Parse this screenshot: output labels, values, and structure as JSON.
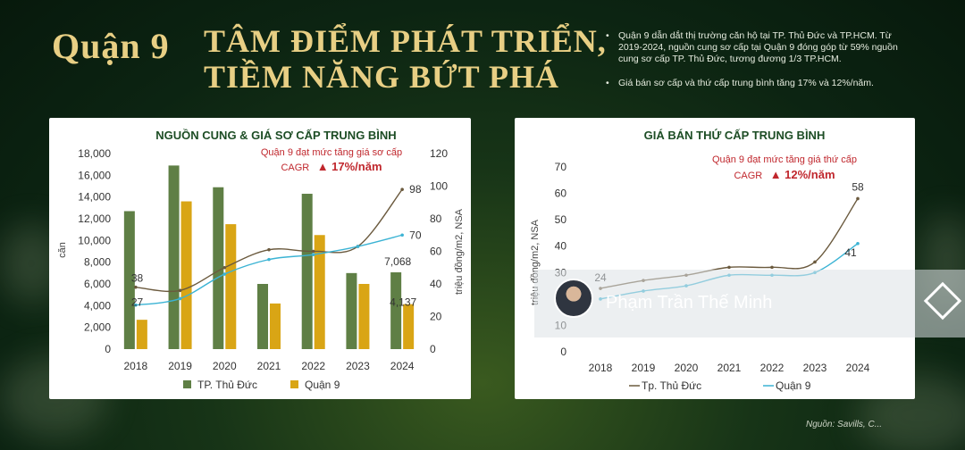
{
  "header": {
    "district": "Quận 9",
    "headline_line1": "TÂM ĐIỂM PHÁT TRIỂN,",
    "headline_line2": "TIỀM NĂNG BỨT PHÁ",
    "notes": [
      "Quận 9 dẫn dắt thị trường căn hộ tại TP. Thủ Đức và TP.HCM. Từ 2019-2024, nguồn cung sơ cấp tại Quận 9 đóng góp từ 59% nguồn cung sơ cấp TP. Thủ Đức, tương đương 1/3 TP.HCM.",
      "Giá bán sơ cấp và thứ cấp trung bình tăng 17% và 12%/năm."
    ]
  },
  "source": "Nguồn: Savills, C...",
  "watermark": {
    "name": "Phạm Trần Thế Minh"
  },
  "colors": {
    "green_bar": "#5f7f45",
    "gold_bar": "#d9a515",
    "brown_line": "#6b5a3e",
    "teal_line": "#3bb3d4",
    "accent_red": "#c0272d",
    "title_green": "#1d4d25"
  },
  "chart_data": [
    {
      "type": "bar",
      "title": "NGUỒN CUNG & GIÁ SƠ CẤP TRUNG BÌNH",
      "annotation_line1": "Quận 9 đạt mức tăng giá sơ cấp",
      "annotation_cagr": "CAGR",
      "annotation_value": "▲ 17%/năm",
      "categories": [
        "2018",
        "2019",
        "2020",
        "2021",
        "2022",
        "2023",
        "2024"
      ],
      "ylabel": "căn",
      "y2label": "triệu đồng/m2, NSA",
      "ylim": [
        0,
        18000
      ],
      "y_ticks": [
        "0",
        "2,000",
        "4,000",
        "6,000",
        "8,000",
        "10,000",
        "12,000",
        "14,000",
        "16,000",
        "18,000"
      ],
      "y2lim": [
        0,
        120
      ],
      "y2_ticks": [
        "0",
        "20",
        "40",
        "60",
        "80",
        "100",
        "120"
      ],
      "series": [
        {
          "name": "TP. Thủ Đức",
          "kind": "bar",
          "values": [
            12700,
            16900,
            14900,
            6000,
            14300,
            7000,
            7068
          ]
        },
        {
          "name": "Quận 9",
          "kind": "bar",
          "values": [
            2700,
            13600,
            11500,
            4200,
            10500,
            6000,
            4137
          ]
        },
        {
          "name": "TP. Thủ Đức price",
          "kind": "line",
          "axis": "right",
          "values": [
            38,
            36,
            50,
            61,
            60,
            63,
            98
          ]
        },
        {
          "name": "Quận 9 price",
          "kind": "line",
          "axis": "right",
          "values": [
            27,
            31,
            46,
            55,
            58,
            63,
            70
          ]
        }
      ],
      "data_labels": [
        "38",
        "27",
        "98",
        "70",
        "7,068",
        "4,137"
      ],
      "legend": [
        "TP. Thủ Đức",
        "Quận 9"
      ]
    },
    {
      "type": "line",
      "title": "GIÁ BÁN THỨ CẤP TRUNG BÌNH",
      "annotation_line1": "Quận 9 đạt mức tăng giá thứ cấp",
      "annotation_cagr": "CAGR",
      "annotation_value": "▲ 12%/năm",
      "categories": [
        "2018",
        "2019",
        "2020",
        "2021",
        "2022",
        "2023",
        "2024"
      ],
      "ylabel": "triệu đồng/m2, NSA",
      "ylim": [
        0,
        70
      ],
      "y_ticks": [
        "0",
        "10",
        "20",
        "30",
        "40",
        "50",
        "60",
        "70"
      ],
      "series": [
        {
          "name": "Tp. Thủ Đức",
          "values": [
            24,
            27,
            29,
            32,
            32,
            34,
            58
          ]
        },
        {
          "name": "Quận 9",
          "values": [
            20,
            23,
            25,
            29,
            29,
            30,
            41
          ]
        }
      ],
      "data_labels": [
        "24",
        "58",
        "41"
      ],
      "legend": [
        "Tp. Thủ Đức",
        "Quận 9"
      ]
    }
  ]
}
